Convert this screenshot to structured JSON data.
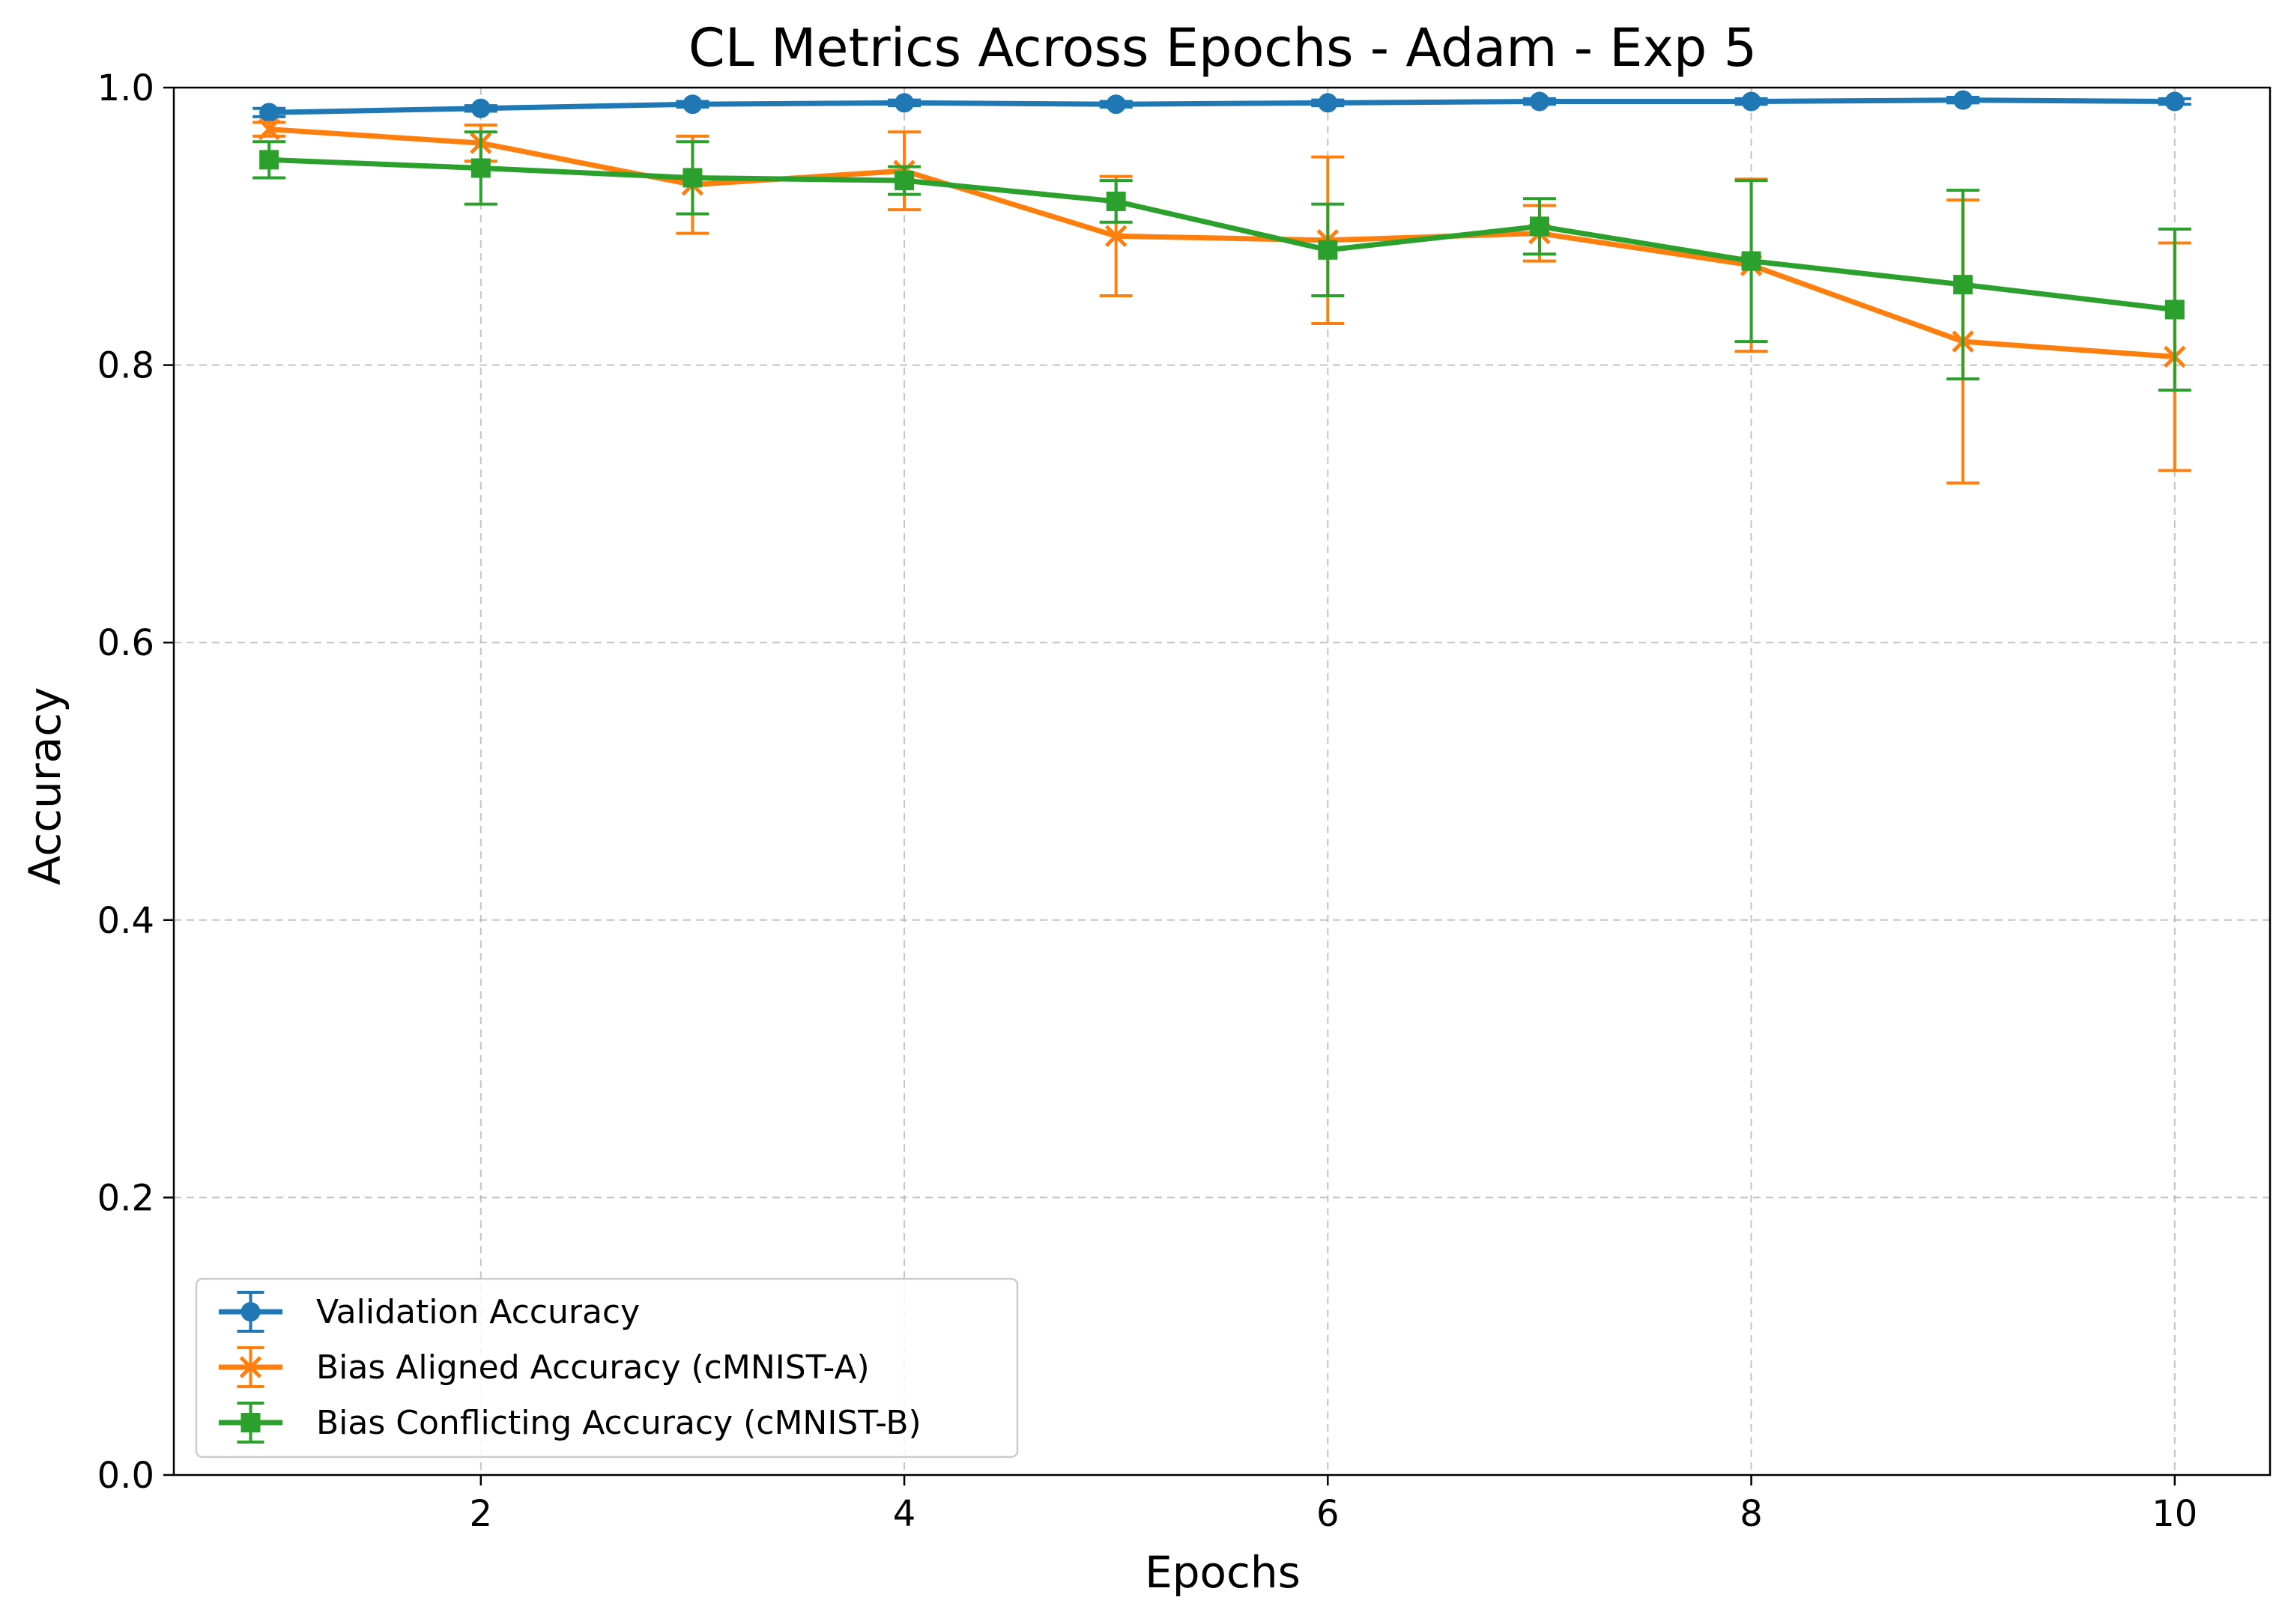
{
  "chart_data": {
    "type": "line",
    "title": "CL Metrics Across Epochs - Adam - Exp 5",
    "xlabel": "Epochs",
    "ylabel": "Accuracy",
    "xlim": [
      0.55,
      10.45
    ],
    "ylim": [
      0.0,
      1.0
    ],
    "x_ticks": [
      2,
      4,
      6,
      8,
      10
    ],
    "y_ticks": [
      0.0,
      0.2,
      0.4,
      0.6,
      0.8,
      1.0
    ],
    "x_tick_labels": [
      "2",
      "4",
      "6",
      "8",
      "10"
    ],
    "y_tick_labels": [
      "0.0",
      "0.2",
      "0.4",
      "0.6",
      "0.8",
      "1.0"
    ],
    "grid": true,
    "legend_position": "bottom-left",
    "x": [
      1,
      2,
      3,
      4,
      5,
      6,
      7,
      8,
      9,
      10
    ],
    "series": [
      {
        "name": "Validation Accuracy",
        "color": "#1f77b4",
        "marker": "circle",
        "values": [
          0.982,
          0.985,
          0.988,
          0.989,
          0.988,
          0.989,
          0.99,
          0.99,
          0.991,
          0.99
        ],
        "errors": [
          0.003,
          0.002,
          0.002,
          0.002,
          0.002,
          0.002,
          0.002,
          0.002,
          0.002,
          0.002
        ]
      },
      {
        "name": "Bias Aligned Accuracy (cMNIST-A)",
        "color": "#ff7f0e",
        "marker": "x",
        "values": [
          0.97,
          0.96,
          0.93,
          0.94,
          0.893,
          0.89,
          0.895,
          0.872,
          0.817,
          0.806
        ],
        "errors": [
          0.005,
          0.013,
          0.035,
          0.028,
          0.043,
          0.06,
          0.02,
          0.062,
          0.102,
          0.082
        ]
      },
      {
        "name": "Bias Conflicting Accuracy (cMNIST-B)",
        "color": "#2ca02c",
        "marker": "square",
        "values": [
          0.948,
          0.942,
          0.935,
          0.933,
          0.918,
          0.883,
          0.9,
          0.875,
          0.858,
          0.84
        ],
        "errors": [
          0.013,
          0.026,
          0.026,
          0.01,
          0.015,
          0.033,
          0.02,
          0.058,
          0.068,
          0.058
        ]
      }
    ]
  }
}
